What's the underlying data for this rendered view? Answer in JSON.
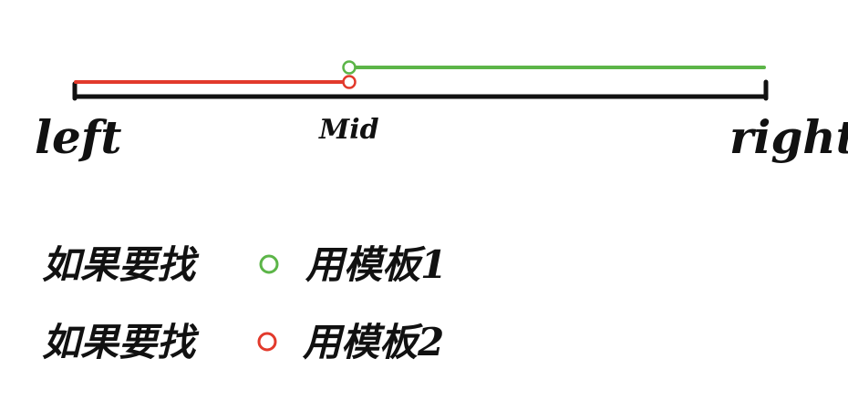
{
  "axis": {
    "left_label": "left",
    "mid_label": "Mid",
    "right_label": "right"
  },
  "colors": {
    "axis": "#111111",
    "template1": "#5cb548",
    "template2": "#e23a2c"
  },
  "ranges": [
    {
      "id": "template1",
      "color_key": "template1",
      "from": "mid",
      "to": "right",
      "endpoint": "open-circle-at-mid"
    },
    {
      "id": "template2",
      "color_key": "template2",
      "from": "left",
      "to": "mid",
      "endpoint": "open-circle-at-mid"
    }
  ],
  "legend": [
    {
      "prefix": "如果要找",
      "suffix": "用模板1",
      "color_key": "template1"
    },
    {
      "prefix": "如果要找",
      "suffix": "用模板2",
      "color_key": "template2"
    }
  ]
}
